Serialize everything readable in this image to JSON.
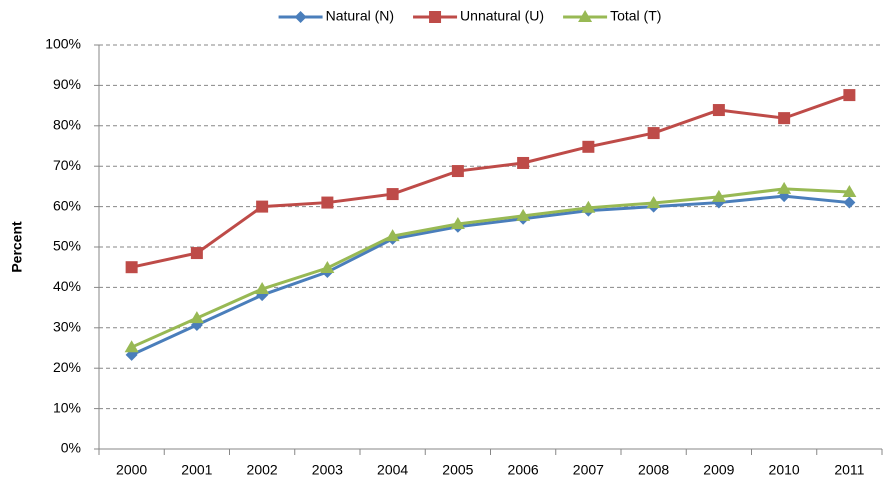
{
  "chart_data": {
    "type": "line",
    "y_label": "Percent",
    "categories": [
      "2000",
      "2001",
      "2002",
      "2003",
      "2004",
      "2005",
      "2006",
      "2007",
      "2008",
      "2009",
      "2010",
      "2011"
    ],
    "series": [
      {
        "name": "Natural (N)",
        "color": "#4a7ebb",
        "marker": "diamond",
        "values": [
          23.3,
          30.7,
          38.1,
          43.8,
          52,
          55,
          57,
          59,
          60,
          61,
          62.6,
          61
        ]
      },
      {
        "name": "Unnatural (U)",
        "color": "#be4b48",
        "marker": "square",
        "values": [
          45,
          48.5,
          60,
          61,
          63.1,
          68.8,
          70.8,
          74.8,
          78.2,
          83.9,
          81.9,
          87.6
        ]
      },
      {
        "name": "Total (T)",
        "color": "#98b954",
        "marker": "triangle",
        "values": [
          25.2,
          32.4,
          39.6,
          44.8,
          52.7,
          55.7,
          57.7,
          59.7,
          60.9,
          62.4,
          64.4,
          63.6
        ]
      }
    ],
    "ylim": [
      0,
      100
    ],
    "yticks": [
      {
        "value": 0,
        "label": "0%"
      },
      {
        "value": 10,
        "label": "10%"
      },
      {
        "value": 20,
        "label": "20%"
      },
      {
        "value": 30,
        "label": "30%"
      },
      {
        "value": 40,
        "label": "40%"
      },
      {
        "value": 50,
        "label": "50%"
      },
      {
        "value": 60,
        "label": "60%"
      },
      {
        "value": 70,
        "label": "70%"
      },
      {
        "value": 80,
        "label": "80%"
      },
      {
        "value": 90,
        "label": "90%"
      },
      {
        "value": 100,
        "label": "100%"
      }
    ],
    "grid": true,
    "legend": "top"
  }
}
